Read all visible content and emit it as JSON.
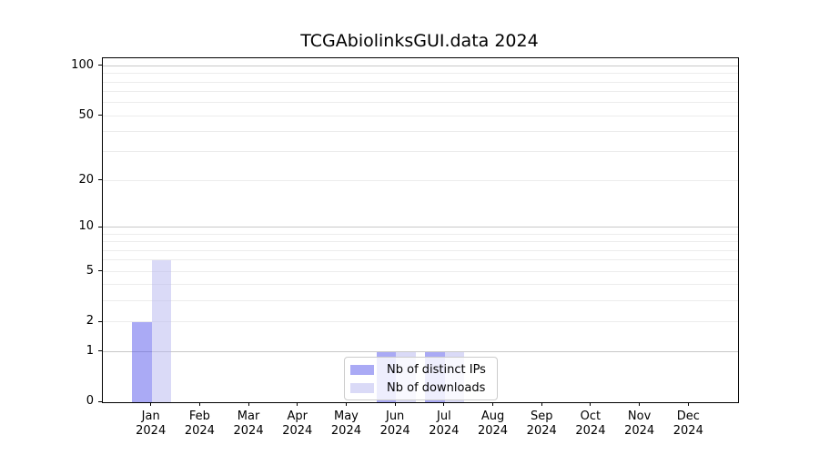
{
  "title": "TCGAbiolinksGUI.data 2024",
  "colors": {
    "background": "#ffffff",
    "axis": "#000000",
    "text": "#000000",
    "grid_major": "#c8c8c8",
    "grid_minor": "#ececec",
    "legend_border": "#cccccc",
    "legend_background": "rgba(255,255,255,0.8)",
    "ips_bar": "rgba(85,85,235,0.5)",
    "downloads_bar": "rgba(181,181,239,0.5)"
  },
  "legend": {
    "items": [
      {
        "label": "Nb of distinct IPs",
        "series_key": "ips"
      },
      {
        "label": "Nb of downloads",
        "series_key": "downloads"
      }
    ]
  },
  "chart_data": {
    "type": "bar",
    "title": "TCGAbiolinksGUI.data 2024",
    "xlabel": "",
    "ylabel": "",
    "yscale": "log1p",
    "ylim": [
      0,
      112
    ],
    "yticks": [
      0,
      1,
      2,
      5,
      10,
      20,
      50,
      100
    ],
    "grid_major": [
      1,
      10,
      100
    ],
    "grid_minor": [
      2,
      3,
      4,
      5,
      6,
      7,
      8,
      9,
      20,
      30,
      40,
      50,
      60,
      70,
      80,
      90
    ],
    "grid": true,
    "legend_position": "bottom-center",
    "categories": [
      {
        "month": "Jan",
        "year": "2024"
      },
      {
        "month": "Feb",
        "year": "2024"
      },
      {
        "month": "Mar",
        "year": "2024"
      },
      {
        "month": "Apr",
        "year": "2024"
      },
      {
        "month": "May",
        "year": "2024"
      },
      {
        "month": "Jun",
        "year": "2024"
      },
      {
        "month": "Jul",
        "year": "2024"
      },
      {
        "month": "Aug",
        "year": "2024"
      },
      {
        "month": "Sep",
        "year": "2024"
      },
      {
        "month": "Oct",
        "year": "2024"
      },
      {
        "month": "Nov",
        "year": "2024"
      },
      {
        "month": "Dec",
        "year": "2024"
      }
    ],
    "series": [
      {
        "key": "ips",
        "name": "Nb of distinct IPs",
        "color": "rgba(85,85,235,0.5)",
        "values": [
          2,
          0,
          0,
          0,
          0,
          1,
          1,
          0,
          0,
          0,
          0,
          0
        ]
      },
      {
        "key": "downloads",
        "name": "Nb of downloads",
        "color": "rgba(181,181,239,0.5)",
        "values": [
          6,
          0,
          0,
          0,
          0,
          1,
          1,
          0,
          0,
          0,
          0,
          0
        ]
      }
    ]
  }
}
